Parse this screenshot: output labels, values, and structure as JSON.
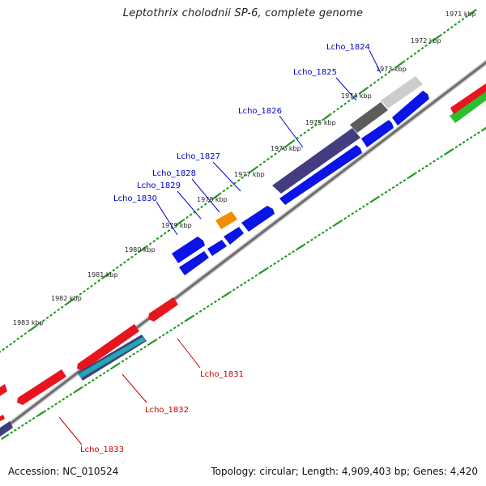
{
  "title": "Leptothrix cholodnii SP-6, complete genome",
  "accession": "Accession: NC_010524",
  "summary": "Topology: circular; Length: 4,909,403 bp; Genes: 4,420",
  "colors": {
    "forward_label": "#0000cc",
    "reverse_label": "#cc0000",
    "blue": "#0a14e6",
    "red": "#e8141e",
    "navy": "#403c7e",
    "gray": "#5a5a5a",
    "lightgray": "#c8c8c8",
    "orange": "#f28c00",
    "green": "#2ebd2e",
    "teal": "#23a7b1",
    "backbone": "#8a8a8a",
    "ticks": "#1a9a1a"
  },
  "scale": {
    "labels": [
      "1971 kbp",
      "1972 kbp",
      "1973 kbp",
      "1974 kbp",
      "1975 kbp",
      "1976 kbp",
      "1977 kbp",
      "1978 kbp",
      "1979 kbp",
      "1980 kbp",
      "1981 kbp",
      "1982 kbp",
      "1983 kbp"
    ]
  },
  "genes": {
    "forward": [
      "Lcho_1824",
      "Lcho_1825",
      "Lcho_1826",
      "Lcho_1827",
      "Lcho_1828",
      "Lcho_1829",
      "Lcho_1830"
    ],
    "reverse": [
      "Lcho_1831",
      "Lcho_1832",
      "Lcho_1833"
    ]
  }
}
